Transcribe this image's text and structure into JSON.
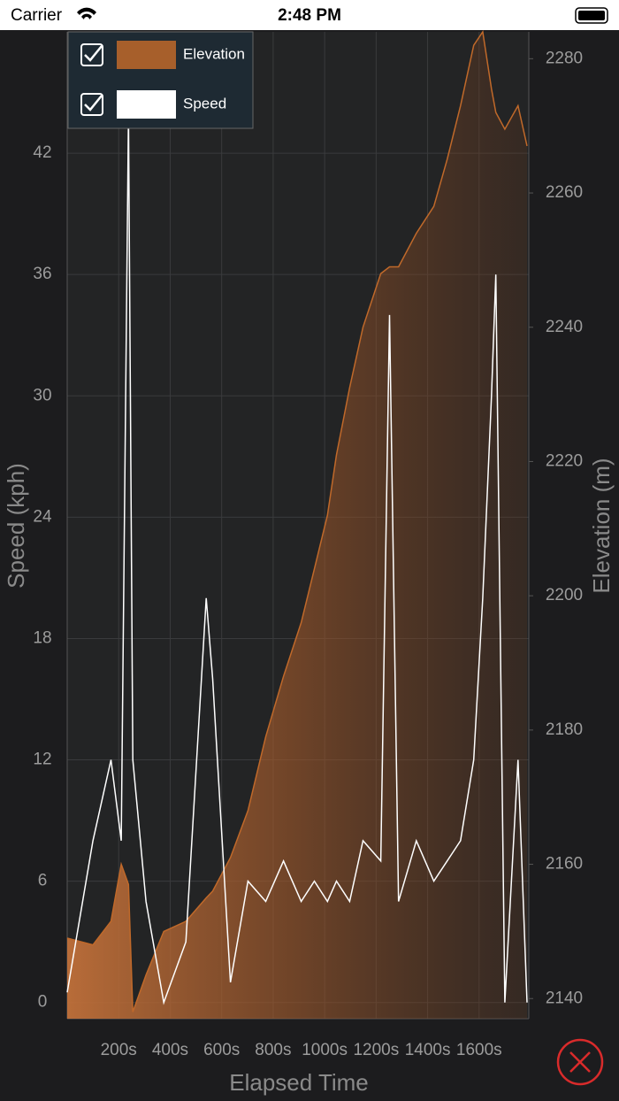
{
  "status_bar": {
    "carrier": "Carrier",
    "time": "2:48 PM"
  },
  "chart_data": {
    "type": "line",
    "x_label": "Elapsed Time",
    "y_label": "Speed (kph)",
    "y2_label": "Elevation (m)",
    "x": [
      0,
      100,
      170,
      210,
      238,
      255,
      306,
      375,
      461,
      540,
      565,
      634,
      702,
      771,
      840,
      909,
      960,
      1011,
      1046,
      1097,
      1149,
      1218,
      1252,
      1287,
      1356,
      1424,
      1476,
      1528,
      1579,
      1614,
      1648,
      1665,
      1700,
      1751,
      1786
    ],
    "series": [
      {
        "name": "Elevation",
        "type": "area",
        "axis": "y2",
        "color": "#c0692a",
        "values": [
          2149,
          2148,
          2151.5,
          2160,
          2157,
          2138,
          2143.5,
          2150,
          2151.5,
          2155,
          2156,
          2161,
          2168,
          2179,
          2188,
          2196,
          2204,
          2212,
          2221,
          2231,
          2240,
          2248,
          2249,
          2249,
          2254,
          2258,
          2265,
          2273,
          2282,
          2284,
          2275.5,
          2272,
          2269.5,
          2273,
          2267
        ]
      },
      {
        "name": "Speed",
        "type": "line",
        "color": "#ffffff",
        "values": [
          0.5,
          8,
          12,
          8,
          44,
          12,
          5,
          0,
          3,
          20,
          16,
          1,
          6,
          5,
          7,
          5,
          6,
          5,
          6,
          5,
          8,
          7,
          34,
          5,
          8,
          6,
          7,
          8,
          12,
          20,
          30,
          36,
          0,
          12,
          0
        ]
      }
    ],
    "xlim": [
      0,
      1793
    ],
    "xticks": [
      {
        "value": 200,
        "label": "200s"
      },
      {
        "value": 400,
        "label": "400s"
      },
      {
        "value": 600,
        "label": "600s"
      },
      {
        "value": 800,
        "label": "800s"
      },
      {
        "value": 1000,
        "label": "1000s"
      },
      {
        "value": 1200,
        "label": "1200s"
      },
      {
        "value": 1400,
        "label": "1400s"
      },
      {
        "value": 1600,
        "label": "1600s"
      }
    ],
    "ylim": [
      -0.8,
      48
    ],
    "yticks": [
      0,
      6,
      12,
      18,
      24,
      30,
      36,
      42
    ],
    "y2lim": [
      2137,
      2284
    ],
    "y2ticks": [
      2140,
      2160,
      2180,
      2200,
      2220,
      2240,
      2260,
      2280
    ],
    "grid": true,
    "legend": "top-left"
  }
}
